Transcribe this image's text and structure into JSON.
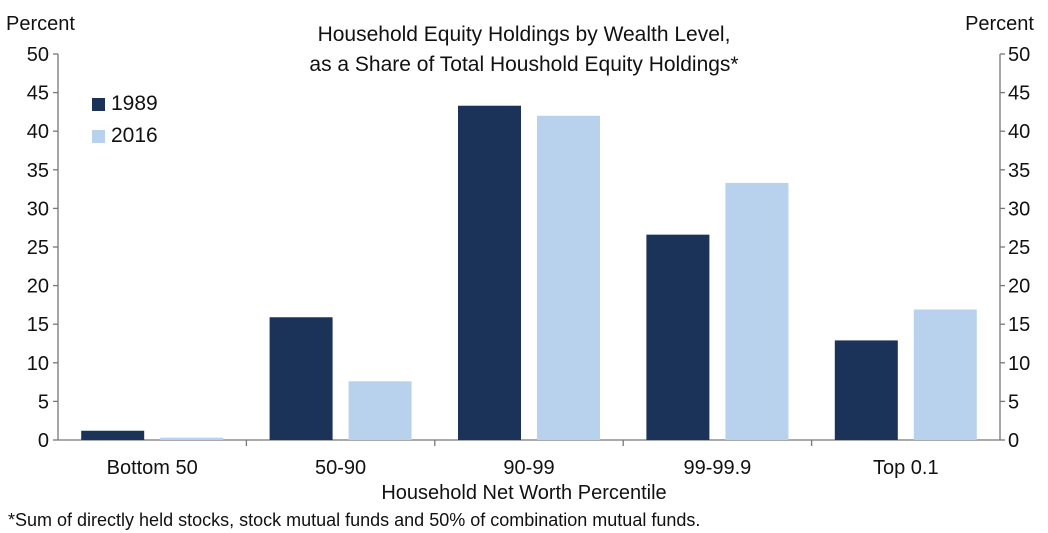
{
  "chart_data": {
    "type": "bar",
    "title_line1": "Household Equity Holdings by Wealth Level,",
    "title_line2": "as a Share of Total Houshold Equity Holdings*",
    "ylabel_left": "Percent",
    "ylabel_right": "Percent",
    "xlabel": "Household Net Worth Percentile",
    "footnote": "*Sum of directly held stocks, stock mutual funds and 50% of combination mutual funds.",
    "categories": [
      "Bottom 50",
      "50-90",
      "90-99",
      "99-99.9",
      "Top 0.1"
    ],
    "series": [
      {
        "name": "1989",
        "color": "#1b3358",
        "values": [
          1.2,
          15.9,
          43.3,
          26.6,
          12.9
        ]
      },
      {
        "name": "2016",
        "color": "#b8d1ec",
        "values": [
          0.3,
          7.6,
          42.0,
          33.3,
          16.9
        ]
      }
    ],
    "ylim": [
      0,
      50
    ],
    "yticks": [
      0,
      5,
      10,
      15,
      20,
      25,
      30,
      35,
      40,
      45,
      50
    ],
    "grid": false,
    "legend_position": "top-left"
  }
}
